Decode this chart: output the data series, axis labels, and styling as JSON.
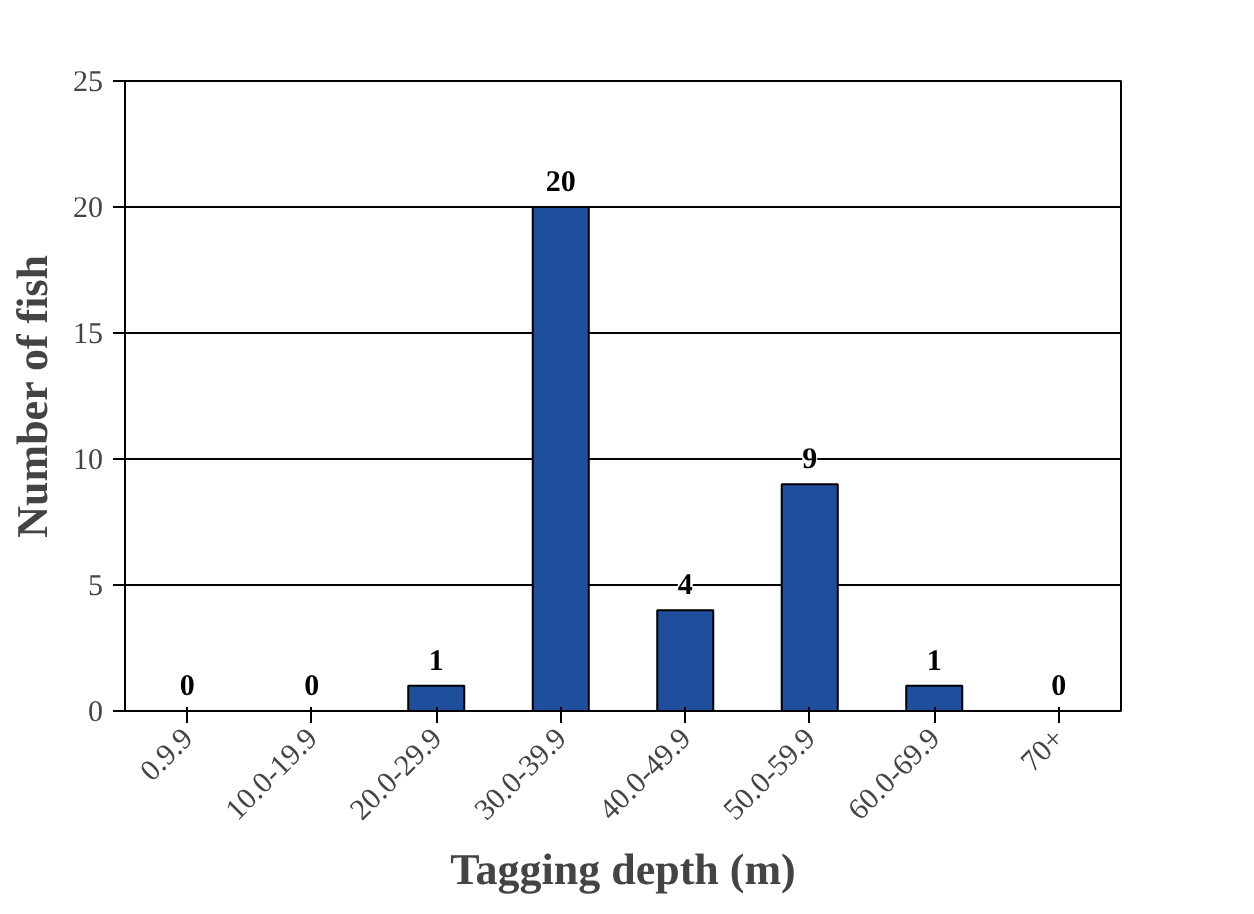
{
  "chart_data": {
    "type": "bar",
    "xlabel": "Tagging depth (m)",
    "ylabel": "Number of fish",
    "categories": [
      "0.9.9",
      "10.0-19.9",
      "20.0-29.9",
      "30.0-39.9",
      "40.0-49.9",
      "50.0-59.9",
      "60.0-69.9",
      "70+"
    ],
    "values": [
      0,
      0,
      1,
      20,
      4,
      9,
      1,
      0
    ],
    "color": "#1f4e9c",
    "ylim": [
      0,
      25
    ],
    "yticks": [
      0,
      5,
      10,
      15,
      20,
      25
    ],
    "grid": "y",
    "data_labels": true
  }
}
